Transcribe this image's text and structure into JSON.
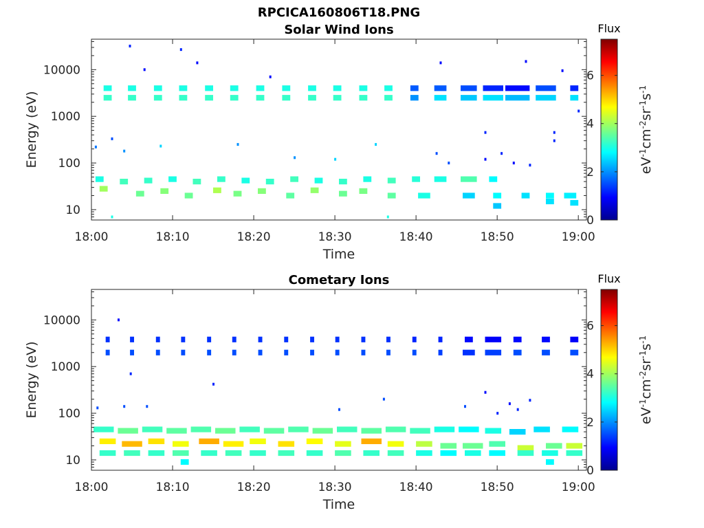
{
  "figure_title": "RPCICA160806T18.PNG",
  "chart_data": [
    {
      "type": "heatmap",
      "title": "Solar Wind Ions",
      "xlabel": "Time",
      "ylabel": "Energy (eV)",
      "x_ticks": [
        "18:00",
        "18:10",
        "18:20",
        "18:30",
        "18:40",
        "18:50",
        "19:00"
      ],
      "x_range_minutes": [
        0,
        61
      ],
      "y_scale": "log",
      "y_ticks": [
        "10",
        "100",
        "1000",
        "10000"
      ],
      "y_range_ev": [
        6,
        45000
      ],
      "colorbar": {
        "title": "Flux",
        "label": "eV-1cm-2sr-1s-1",
        "ticks": [
          "0",
          "2",
          "4",
          "6"
        ],
        "range": [
          0,
          7.5
        ],
        "colormap": "jet"
      },
      "blocks": [
        [
          2,
          2500,
          3.2,
          1
        ],
        [
          2,
          4000,
          3.0,
          1
        ],
        [
          5,
          2500,
          3.2,
          1
        ],
        [
          5,
          4000,
          3.0,
          1
        ],
        [
          8.2,
          2500,
          3.2,
          1
        ],
        [
          8.2,
          4000,
          3.0,
          1
        ],
        [
          11.3,
          2500,
          3.2,
          1
        ],
        [
          11.3,
          4000,
          3.0,
          1
        ],
        [
          14.5,
          2500,
          3.2,
          1
        ],
        [
          14.5,
          4000,
          3.0,
          1
        ],
        [
          17.6,
          2500,
          3.2,
          1
        ],
        [
          17.6,
          4000,
          3.0,
          1
        ],
        [
          20.8,
          2500,
          3.2,
          1
        ],
        [
          20.8,
          4000,
          3.0,
          1
        ],
        [
          24,
          2500,
          3.2,
          1
        ],
        [
          24,
          4000,
          3.0,
          1
        ],
        [
          27.2,
          2500,
          3.2,
          1
        ],
        [
          27.2,
          4000,
          3.0,
          1
        ],
        [
          30.3,
          2500,
          3.2,
          1
        ],
        [
          30.3,
          4000,
          3.0,
          1
        ],
        [
          33.5,
          2500,
          3.2,
          1
        ],
        [
          33.5,
          4000,
          3.0,
          1
        ],
        [
          36.6,
          2500,
          3.2,
          1
        ],
        [
          36.6,
          4000,
          3.0,
          1
        ],
        [
          39.8,
          2500,
          2.0,
          1
        ],
        [
          39.8,
          4000,
          1.6,
          1
        ],
        [
          43,
          2500,
          2.6,
          1.5
        ],
        [
          43,
          4000,
          1.6,
          1.5
        ],
        [
          46.5,
          2500,
          2.4,
          2
        ],
        [
          46.5,
          4000,
          1.5,
          2
        ],
        [
          49.5,
          2500,
          2.6,
          2.5
        ],
        [
          49.5,
          4000,
          1.2,
          2.5
        ],
        [
          52.5,
          2500,
          2.3,
          3
        ],
        [
          52.5,
          4000,
          1.0,
          3
        ],
        [
          56,
          2500,
          2.5,
          2.5
        ],
        [
          56,
          4000,
          1.5,
          2.5
        ],
        [
          59.5,
          2500,
          2.6,
          1
        ],
        [
          59.5,
          4000,
          1.2,
          1
        ],
        [
          1,
          45,
          3.0,
          1
        ],
        [
          4,
          40,
          3.3,
          1
        ],
        [
          7,
          42,
          3.2,
          1
        ],
        [
          10,
          45,
          3.0,
          1
        ],
        [
          13,
          40,
          3.3,
          1
        ],
        [
          16,
          45,
          3.2,
          1
        ],
        [
          19,
          42,
          3.0,
          1
        ],
        [
          22,
          40,
          3.2,
          1
        ],
        [
          25,
          45,
          3.3,
          1
        ],
        [
          28,
          42,
          3.0,
          1
        ],
        [
          31,
          40,
          3.2,
          1
        ],
        [
          34,
          45,
          3.0,
          1
        ],
        [
          37,
          42,
          3.3,
          1
        ],
        [
          40,
          45,
          3.1,
          1
        ],
        [
          43,
          45,
          3.0,
          1.5
        ],
        [
          46.5,
          45,
          3.4,
          2
        ],
        [
          49.5,
          45,
          2.8,
          1
        ],
        [
          1.5,
          28,
          4.0,
          1
        ],
        [
          6,
          22,
          3.6,
          1
        ],
        [
          9,
          25,
          3.8,
          1
        ],
        [
          12,
          20,
          3.6,
          1
        ],
        [
          15.5,
          26,
          4.1,
          1
        ],
        [
          18,
          22,
          3.7,
          1
        ],
        [
          21,
          25,
          3.8,
          1
        ],
        [
          24.5,
          20,
          3.5,
          1
        ],
        [
          27.5,
          26,
          3.9,
          1
        ],
        [
          31,
          22,
          3.6,
          1
        ],
        [
          33.5,
          25,
          3.7,
          1
        ],
        [
          37,
          20,
          3.5,
          1
        ],
        [
          41,
          20,
          3.0,
          1.5
        ],
        [
          46.5,
          20,
          2.5,
          1.5
        ],
        [
          50,
          20,
          2.8,
          1
        ],
        [
          53.5,
          20,
          2.6,
          1
        ],
        [
          56.5,
          20,
          2.8,
          1
        ],
        [
          59,
          20,
          2.7,
          1.5
        ],
        [
          50,
          12,
          2.4,
          1
        ],
        [
          56.5,
          15,
          2.6,
          1
        ],
        [
          59.5,
          14,
          2.6,
          1
        ]
      ],
      "scatter_points": [
        [
          4.7,
          32000,
          1.2
        ],
        [
          11,
          27000,
          1.2
        ],
        [
          13,
          14000,
          1.0
        ],
        [
          6.5,
          10000,
          1.0
        ],
        [
          22,
          7000,
          1.0
        ],
        [
          0.5,
          220,
          1.8
        ],
        [
          2.5,
          330,
          1.5
        ],
        [
          4,
          180,
          2.0
        ],
        [
          8.5,
          230,
          2.5
        ],
        [
          18,
          250,
          2.0
        ],
        [
          25,
          130,
          2.0
        ],
        [
          30,
          120,
          2.5
        ],
        [
          35,
          250,
          2.5
        ],
        [
          42.5,
          160,
          1.5
        ],
        [
          44,
          100,
          1.5
        ],
        [
          48.5,
          450,
          1.2
        ],
        [
          48.5,
          120,
          1.0
        ],
        [
          50.5,
          160,
          1.2
        ],
        [
          52,
          100,
          1.0
        ],
        [
          54,
          90,
          1.2
        ],
        [
          57,
          300,
          1.2
        ],
        [
          57,
          450,
          1.2
        ],
        [
          58,
          9500,
          1.0
        ],
        [
          43,
          14000,
          1.0
        ],
        [
          53.5,
          15000,
          1.0
        ],
        [
          60,
          1300,
          1.2
        ],
        [
          2.5,
          7,
          3.0
        ],
        [
          36.5,
          7,
          3.0
        ]
      ]
    },
    {
      "type": "heatmap",
      "title": "Cometary Ions",
      "xlabel": "Time",
      "ylabel": "Energy (eV)",
      "x_ticks": [
        "18:00",
        "18:10",
        "18:20",
        "18:30",
        "18:40",
        "18:50",
        "19:00"
      ],
      "x_range_minutes": [
        0,
        61
      ],
      "y_scale": "log",
      "y_ticks": [
        "10",
        "100",
        "1000",
        "10000"
      ],
      "y_range_ev": [
        6,
        45000
      ],
      "colorbar": {
        "title": "Flux",
        "label": "eV-1cm-2sr-1s-1",
        "ticks": [
          "0",
          "2",
          "4",
          "6"
        ],
        "range": [
          0,
          7.5
        ],
        "colormap": "jet"
      },
      "blocks": [
        [
          2,
          2000,
          1.5,
          0.5
        ],
        [
          2,
          3800,
          1.3,
          0.5
        ],
        [
          5,
          2000,
          1.5,
          0.5
        ],
        [
          5,
          3800,
          1.3,
          0.5
        ],
        [
          8.2,
          2000,
          1.5,
          0.5
        ],
        [
          8.2,
          3800,
          1.3,
          0.5
        ],
        [
          11.3,
          2000,
          1.5,
          0.5
        ],
        [
          11.3,
          3800,
          1.3,
          0.5
        ],
        [
          14.5,
          2000,
          1.5,
          0.5
        ],
        [
          14.5,
          3800,
          1.3,
          0.5
        ],
        [
          17.6,
          2000,
          1.5,
          0.5
        ],
        [
          17.6,
          3800,
          1.3,
          0.5
        ],
        [
          20.8,
          2000,
          1.5,
          0.5
        ],
        [
          20.8,
          3800,
          1.3,
          0.5
        ],
        [
          24,
          2000,
          1.5,
          0.5
        ],
        [
          24,
          3800,
          1.3,
          0.5
        ],
        [
          27.2,
          2000,
          1.5,
          0.5
        ],
        [
          27.2,
          3800,
          1.3,
          0.5
        ],
        [
          30.3,
          2000,
          1.5,
          0.5
        ],
        [
          30.3,
          3800,
          1.3,
          0.5
        ],
        [
          33.5,
          2000,
          1.5,
          0.5
        ],
        [
          33.5,
          3800,
          1.3,
          0.5
        ],
        [
          36.6,
          2000,
          1.5,
          0.5
        ],
        [
          36.6,
          3800,
          1.3,
          0.5
        ],
        [
          39.8,
          2000,
          1.5,
          0.5
        ],
        [
          39.8,
          3800,
          1.2,
          0.5
        ],
        [
          43,
          2000,
          1.4,
          0.5
        ],
        [
          43,
          3800,
          1.2,
          0.5
        ],
        [
          46.5,
          2000,
          1.3,
          1.5
        ],
        [
          46.5,
          3800,
          1.0,
          1
        ],
        [
          49.5,
          2000,
          1.4,
          2
        ],
        [
          49.5,
          3800,
          0.9,
          2
        ],
        [
          52.5,
          2000,
          1.5,
          1
        ],
        [
          52.5,
          3800,
          1.0,
          1
        ],
        [
          56,
          2000,
          1.5,
          1
        ],
        [
          56,
          3800,
          1.0,
          1
        ],
        [
          59.5,
          2000,
          1.5,
          1
        ],
        [
          59.5,
          3800,
          0.9,
          1
        ],
        [
          1.5,
          45,
          3.2,
          2.5
        ],
        [
          4.5,
          42,
          3.6,
          2.5
        ],
        [
          7.5,
          45,
          3.3,
          2.5
        ],
        [
          10.5,
          42,
          3.5,
          2.5
        ],
        [
          13.5,
          45,
          3.4,
          2.5
        ],
        [
          16.5,
          42,
          3.6,
          2.5
        ],
        [
          19.5,
          45,
          3.3,
          2.5
        ],
        [
          22.5,
          42,
          3.5,
          2.5
        ],
        [
          25.5,
          45,
          3.4,
          2.5
        ],
        [
          28.5,
          42,
          3.6,
          2.5
        ],
        [
          31.5,
          45,
          3.3,
          2.5
        ],
        [
          34.5,
          42,
          3.5,
          2.5
        ],
        [
          37.5,
          45,
          3.4,
          2.5
        ],
        [
          40.5,
          42,
          3.3,
          2.5
        ],
        [
          43.5,
          45,
          3.0,
          2.5
        ],
        [
          46.5,
          45,
          2.8,
          2.5
        ],
        [
          49.5,
          42,
          3.0,
          2
        ],
        [
          52.5,
          40,
          2.5,
          2
        ],
        [
          55.5,
          45,
          2.6,
          2
        ],
        [
          59,
          45,
          2.8,
          2
        ],
        [
          2,
          25,
          4.8,
          2
        ],
        [
          5,
          22,
          5.2,
          2.5
        ],
        [
          8,
          25,
          4.9,
          2
        ],
        [
          11,
          22,
          4.6,
          2
        ],
        [
          14.5,
          25,
          5.3,
          2.5
        ],
        [
          17.5,
          22,
          4.8,
          2.5
        ],
        [
          20.5,
          25,
          4.6,
          2
        ],
        [
          24,
          22,
          4.9,
          2
        ],
        [
          27.5,
          25,
          4.7,
          2
        ],
        [
          31,
          22,
          4.5,
          2
        ],
        [
          34.5,
          25,
          5.3,
          2.5
        ],
        [
          37.5,
          22,
          4.6,
          2
        ],
        [
          41,
          22,
          4.2,
          2
        ],
        [
          44,
          20,
          3.6,
          2
        ],
        [
          47,
          20,
          3.6,
          2.5
        ],
        [
          50,
          22,
          3.4,
          2
        ],
        [
          53.5,
          18,
          4.3,
          2
        ],
        [
          57,
          20,
          3.6,
          2
        ],
        [
          59.5,
          20,
          4.3,
          2
        ],
        [
          2,
          14,
          3.2,
          2
        ],
        [
          5,
          14,
          3.3,
          2
        ],
        [
          8,
          14,
          3.2,
          2
        ],
        [
          11,
          14,
          3.4,
          2
        ],
        [
          14.5,
          14,
          3.2,
          2
        ],
        [
          17.5,
          14,
          3.3,
          2
        ],
        [
          20.5,
          14,
          3.2,
          2
        ],
        [
          24,
          14,
          3.3,
          2
        ],
        [
          27.5,
          14,
          3.2,
          2
        ],
        [
          31,
          14,
          3.4,
          2
        ],
        [
          34.5,
          14,
          3.2,
          2
        ],
        [
          37.5,
          14,
          3.3,
          2
        ],
        [
          41,
          14,
          3.0,
          2
        ],
        [
          44,
          14,
          2.8,
          2
        ],
        [
          47,
          14,
          3.0,
          2
        ],
        [
          50,
          14,
          2.8,
          2
        ],
        [
          53.5,
          14,
          3.2,
          2
        ],
        [
          56.5,
          14,
          3.0,
          2
        ],
        [
          59.5,
          14,
          3.2,
          2
        ],
        [
          11.5,
          9,
          2.8,
          1
        ],
        [
          56.5,
          9,
          2.8,
          1
        ]
      ],
      "scatter_points": [
        [
          3.3,
          10000,
          1.0
        ],
        [
          4.8,
          700,
          1.2
        ],
        [
          15,
          420,
          1.2
        ],
        [
          0.7,
          130,
          1.5
        ],
        [
          4,
          140,
          1.5
        ],
        [
          6.8,
          140,
          1.5
        ],
        [
          30.5,
          120,
          1.5
        ],
        [
          36,
          200,
          1.5
        ],
        [
          46,
          140,
          1.5
        ],
        [
          48.5,
          280,
          1.0
        ],
        [
          50,
          100,
          1.2
        ],
        [
          51.5,
          160,
          1.0
        ],
        [
          52.5,
          120,
          1.2
        ],
        [
          54,
          190,
          1.2
        ]
      ]
    }
  ]
}
